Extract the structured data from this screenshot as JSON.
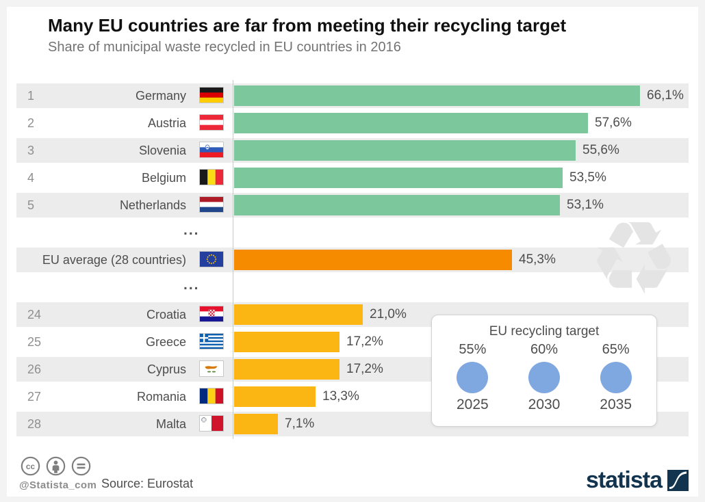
{
  "header": {
    "title": "Many EU countries are far from meeting their recycling target",
    "subtitle": "Share of municipal waste recycled in EU countries in 2016"
  },
  "chart_data": {
    "type": "bar",
    "orientation": "horizontal",
    "unit": "%",
    "value_format": "comma-decimal",
    "xlim": [
      0,
      70
    ],
    "grid": false,
    "separator_label": "...",
    "series_colors": {
      "top5": "#7cc79b",
      "eu_average": "#f78b00",
      "bottom5": "#fcb614"
    },
    "rows": [
      {
        "rank": "1",
        "country": "Germany",
        "flag": "de",
        "value": 66.1,
        "display": "66,1%",
        "series": "top5",
        "shaded": true
      },
      {
        "rank": "2",
        "country": "Austria",
        "flag": "at",
        "value": 57.6,
        "display": "57,6%",
        "series": "top5",
        "shaded": false
      },
      {
        "rank": "3",
        "country": "Slovenia",
        "flag": "si",
        "value": 55.6,
        "display": "55,6%",
        "series": "top5",
        "shaded": true
      },
      {
        "rank": "4",
        "country": "Belgium",
        "flag": "be",
        "value": 53.5,
        "display": "53,5%",
        "series": "top5",
        "shaded": false
      },
      {
        "rank": "5",
        "country": "Netherlands",
        "flag": "nl",
        "value": 53.1,
        "display": "53,1%",
        "series": "top5",
        "shaded": true
      },
      {
        "type": "ellipsis"
      },
      {
        "rank": "",
        "country": "EU average (28 countries)",
        "flag": "eu",
        "value": 45.3,
        "display": "45,3%",
        "series": "eu_average",
        "shaded": true
      },
      {
        "type": "ellipsis"
      },
      {
        "rank": "24",
        "country": "Croatia",
        "flag": "hr",
        "value": 21.0,
        "display": "21,0%",
        "series": "bottom5",
        "shaded": true
      },
      {
        "rank": "25",
        "country": "Greece",
        "flag": "gr",
        "value": 17.2,
        "display": "17,2%",
        "series": "bottom5",
        "shaded": false
      },
      {
        "rank": "26",
        "country": "Cyprus",
        "flag": "cy",
        "value": 17.2,
        "display": "17,2%",
        "series": "bottom5",
        "shaded": true
      },
      {
        "rank": "27",
        "country": "Romania",
        "flag": "ro",
        "value": 13.3,
        "display": "13,3%",
        "series": "bottom5",
        "shaded": false
      },
      {
        "rank": "28",
        "country": "Malta",
        "flag": "mt",
        "value": 7.1,
        "display": "7,1%",
        "series": "bottom5",
        "shaded": true
      }
    ]
  },
  "target_box": {
    "title": "EU recycling target",
    "circle_color": "#7fa8e0",
    "items": [
      {
        "pct": "55%",
        "year": "2025"
      },
      {
        "pct": "60%",
        "year": "2030"
      },
      {
        "pct": "65%",
        "year": "2035"
      }
    ]
  },
  "watermark_icon": "recycling-symbol",
  "footer": {
    "license_icons": [
      "cc-icon",
      "attribution-icon",
      "nd-icon"
    ],
    "handle": "@Statista_com",
    "source": "Source: Eurostat",
    "brand": "statista"
  }
}
